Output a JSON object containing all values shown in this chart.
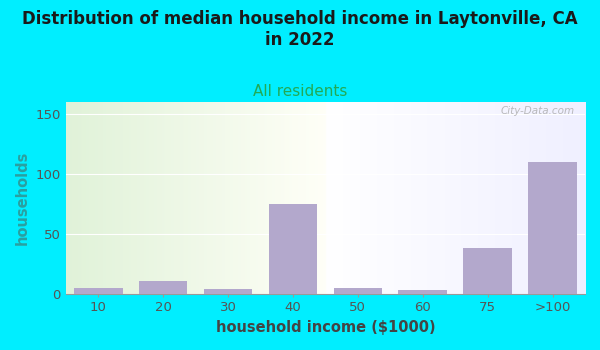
{
  "title_line1": "Distribution of median household income in Laytonville, CA",
  "title_line2": "in 2022",
  "subtitle": "All residents",
  "xlabel": "household income ($1000)",
  "ylabel": "households",
  "categories": [
    "10",
    "20",
    "30",
    "40",
    "50",
    "60",
    "75",
    ">100"
  ],
  "values": [
    5,
    11,
    4,
    75,
    5,
    3,
    38,
    110
  ],
  "bar_color": "#b3a8cc",
  "background_outer": "#00eeff",
  "title_color": "#1a1a1a",
  "subtitle_color": "#22aa55",
  "ylabel_color": "#2aa0a0",
  "xlabel_color": "#444444",
  "tick_color": "#555555",
  "ylim": [
    0,
    160
  ],
  "yticks": [
    0,
    50,
    100,
    150
  ],
  "watermark": "City-Data.com",
  "title_fontsize": 12,
  "subtitle_fontsize": 11,
  "axis_label_fontsize": 10.5,
  "tick_fontsize": 9.5
}
